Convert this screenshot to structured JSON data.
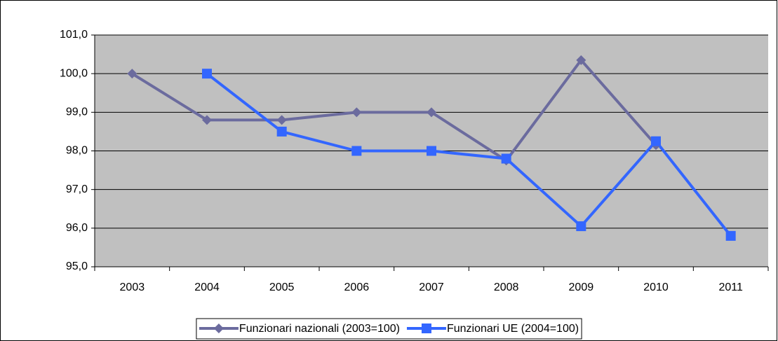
{
  "chart_data": {
    "type": "line",
    "categories": [
      "2003",
      "2004",
      "2005",
      "2006",
      "2007",
      "2008",
      "2009",
      "2010",
      "2011"
    ],
    "series": [
      {
        "name": "Funzionari nazionali (2003=100)",
        "color": "#6b6b9e",
        "marker": "diamond",
        "values": [
          100.0,
          98.8,
          98.8,
          99.0,
          99.0,
          97.75,
          100.35,
          98.15,
          null
        ]
      },
      {
        "name": "Funzionari UE (2004=100)",
        "color": "#3366ff",
        "marker": "square",
        "values": [
          null,
          100.0,
          98.5,
          98.0,
          98.0,
          97.8,
          96.05,
          98.25,
          95.8
        ]
      }
    ],
    "ylim": [
      95,
      101
    ],
    "yticks": [
      {
        "value": 95,
        "label": "95,0"
      },
      {
        "value": 96,
        "label": "96,0"
      },
      {
        "value": 97,
        "label": "97,0"
      },
      {
        "value": 98,
        "label": "98,0"
      },
      {
        "value": 99,
        "label": "99,0"
      },
      {
        "value": 100,
        "label": "100,0"
      },
      {
        "value": 101,
        "label": "101,0"
      }
    ],
    "grid": true,
    "legend": "bottom",
    "plot_background": "#c0c0c0"
  }
}
